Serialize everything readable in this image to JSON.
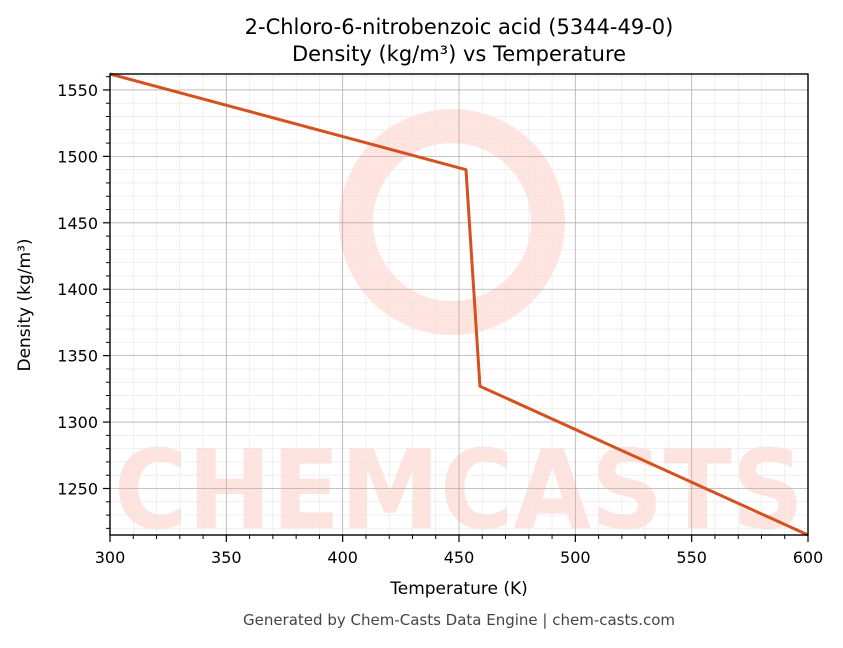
{
  "chart_data": {
    "type": "line",
    "title": "2-Chloro-6-nitrobenzoic acid (5344-49-0)",
    "subtitle": "Density (kg/m³) vs Temperature",
    "xlabel": "Temperature (K)",
    "ylabel": "Density (kg/m³)",
    "xlim": [
      300,
      600
    ],
    "ylim": [
      1215,
      1562
    ],
    "xticks": [
      300,
      350,
      400,
      450,
      500,
      550,
      600
    ],
    "yticks": [
      1250,
      1300,
      1350,
      1400,
      1450,
      1500,
      1550
    ],
    "grid": true,
    "series": [
      {
        "color": "#d4521f",
        "x": [
          300,
          453,
          459,
          600
        ],
        "y": [
          1562,
          1490,
          1327,
          1215
        ]
      }
    ],
    "watermark": "CHEMCASTS"
  },
  "footer": "Generated by Chem-Casts Data Engine | chem-casts.com"
}
